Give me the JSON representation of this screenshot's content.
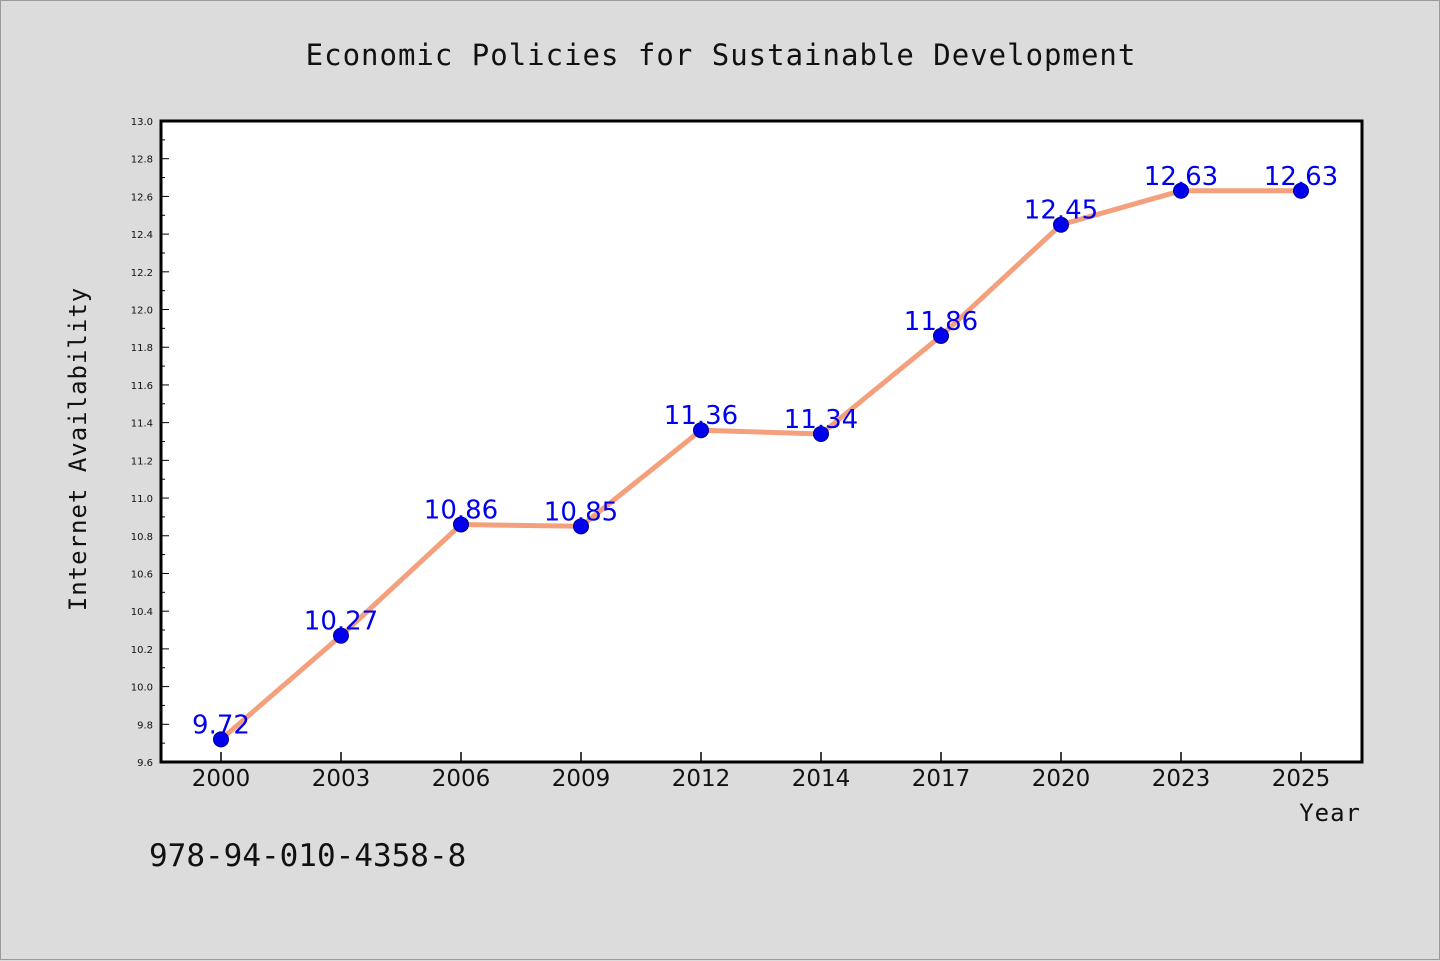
{
  "colors": {
    "background": "#dcdcdc",
    "plot_background": "#ffffff",
    "line": "#f4a07c",
    "marker": "#0000ee",
    "data_label": "#0000ee",
    "frame": "#000000"
  },
  "footer": {
    "isbn": "978-94-010-4358-8"
  },
  "chart_data": {
    "type": "line",
    "title": "Economic Policies for Sustainable Development",
    "xlabel": "Year",
    "ylabel": "Internet Availability",
    "categories": [
      "2000",
      "2003",
      "2006",
      "2009",
      "2012",
      "2014",
      "2017",
      "2020",
      "2023",
      "2025"
    ],
    "series": [
      {
        "values": [
          9.72,
          10.27,
          10.86,
          10.85,
          11.36,
          11.34,
          11.86,
          12.45,
          12.63,
          12.63
        ]
      }
    ],
    "data_labels": [
      "9.72",
      "10.27",
      "10.86",
      "10.85",
      "11.36",
      "11.34",
      "11.86",
      "12.45",
      "12.63",
      "12.63"
    ],
    "ylim": [
      9.6,
      13.0
    ],
    "yticks": [
      "9.6",
      "9.8",
      "10.0",
      "10.2",
      "10.4",
      "10.6",
      "10.8",
      "11.0",
      "11.2",
      "11.4",
      "11.6",
      "11.8",
      "12.0",
      "12.2",
      "12.4",
      "12.6",
      "12.8",
      "13.0"
    ],
    "grid": false,
    "legend": "none"
  }
}
